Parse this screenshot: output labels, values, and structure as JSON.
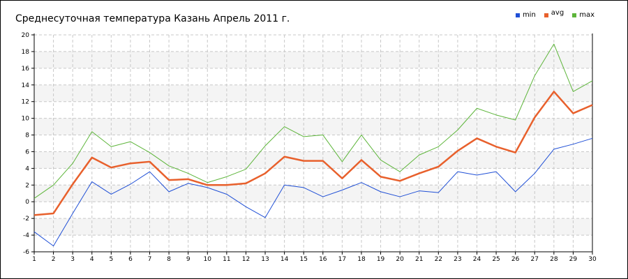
{
  "chart_data": {
    "type": "line",
    "title": "Среднесуточная температура Казань  Апрель 2011 г.",
    "xlabel": "",
    "ylabel": "",
    "x": [
      1,
      2,
      3,
      4,
      5,
      6,
      7,
      8,
      9,
      10,
      11,
      12,
      13,
      14,
      15,
      16,
      17,
      18,
      19,
      20,
      21,
      22,
      23,
      24,
      25,
      26,
      27,
      28,
      29,
      30
    ],
    "ylim": [
      -6,
      20
    ],
    "yticks": [
      -6,
      -4,
      -2,
      0,
      2,
      4,
      6,
      8,
      10,
      12,
      14,
      16,
      18,
      20
    ],
    "grid": true,
    "legend_position": "top-right",
    "series": [
      {
        "name": "min",
        "color": "#1f4fd6",
        "values": [
          -3.6,
          -5.3,
          -1.4,
          2.4,
          0.9,
          2.1,
          3.6,
          1.2,
          2.2,
          1.7,
          0.9,
          -0.6,
          -1.9,
          2.0,
          1.7,
          0.6,
          1.4,
          2.3,
          1.2,
          0.6,
          1.3,
          1.1,
          3.6,
          3.2,
          3.6,
          1.2,
          3.4,
          6.3,
          6.9,
          7.6
        ]
      },
      {
        "name": "avg",
        "color": "#e8602c",
        "values": [
          -1.6,
          -1.4,
          2.1,
          5.3,
          4.1,
          4.6,
          4.8,
          2.6,
          2.7,
          2.0,
          2.0,
          2.2,
          3.4,
          5.4,
          4.9,
          4.9,
          2.8,
          5.0,
          3.0,
          2.5,
          3.4,
          4.2,
          6.1,
          7.6,
          6.6,
          5.9,
          10.1,
          13.2,
          10.6,
          11.6
        ]
      },
      {
        "name": "max",
        "color": "#5db53a",
        "values": [
          0.4,
          2.0,
          4.6,
          8.4,
          6.6,
          7.2,
          5.9,
          4.3,
          3.4,
          2.3,
          3.0,
          3.9,
          6.7,
          9.0,
          7.8,
          8.0,
          4.8,
          8.0,
          5.0,
          3.6,
          5.6,
          6.6,
          8.6,
          11.2,
          10.4,
          9.8,
          15.1,
          18.9,
          13.2,
          14.5
        ]
      }
    ]
  }
}
